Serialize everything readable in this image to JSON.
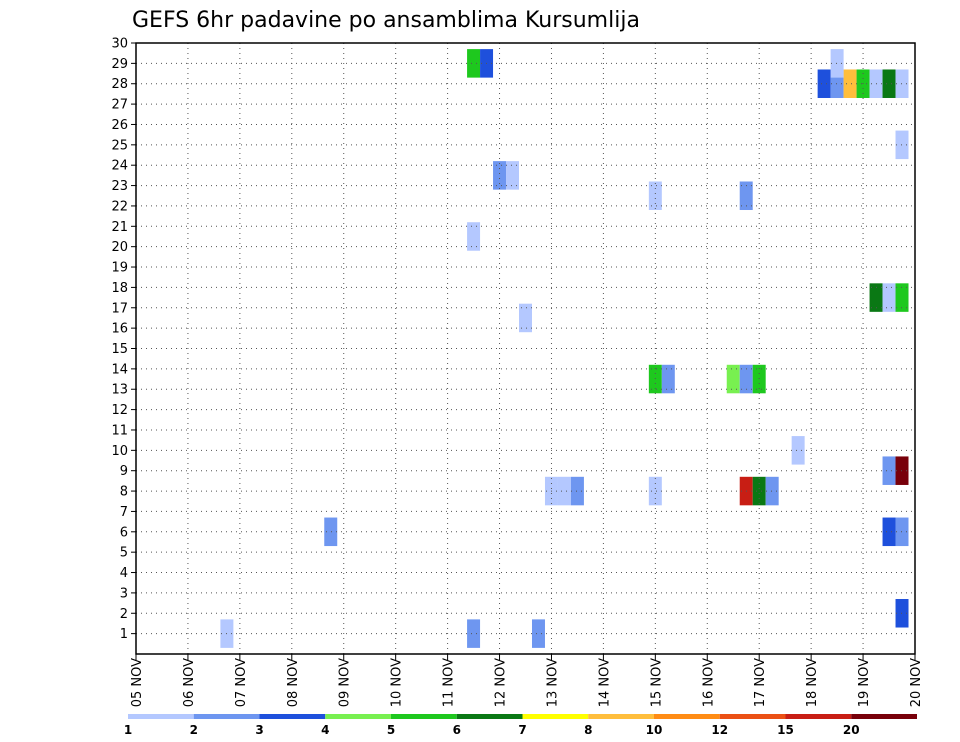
{
  "chart_data": {
    "type": "heatmap",
    "title": "GEFS 6hr padavine po ansamblima Kursumlija",
    "x_ticks": [
      "05 NOV",
      "06 NOV",
      "07 NOV",
      "08 NOV",
      "09 NOV",
      "10 NOV",
      "11 NOV",
      "12 NOV",
      "13 NOV",
      "14 NOV",
      "15 NOV",
      "16 NOV",
      "17 NOV",
      "18 NOV",
      "19 NOV",
      "20 NOV"
    ],
    "y_ticks": [
      "1",
      "2",
      "3",
      "4",
      "5",
      "6",
      "7",
      "8",
      "9",
      "10",
      "11",
      "12",
      "13",
      "14",
      "15",
      "16",
      "17",
      "18",
      "19",
      "20",
      "21",
      "22",
      "23",
      "24",
      "25",
      "26",
      "27",
      "28",
      "29",
      "30"
    ],
    "x_range": [
      "05 NOV 00Z",
      "20 NOV 00Z"
    ],
    "y_range": [
      0,
      30
    ],
    "grid": true,
    "colorbar": {
      "labels": [
        "1",
        "2",
        "3",
        "4",
        "5",
        "6",
        "7",
        "8",
        "10",
        "12",
        "15",
        "20"
      ],
      "colors": [
        "#b4c8ff",
        "#6e96f0",
        "#1e50dc",
        "#78f050",
        "#1ec81e",
        "#0a7814",
        "#ffff00",
        "#ffbe3c",
        "#ff8c14",
        "#eb5014",
        "#c81e14",
        "#78000a"
      ]
    },
    "cells": [
      {
        "member": 29,
        "day": 11.5,
        "precip": 5
      },
      {
        "member": 29,
        "day": 11.75,
        "precip": 3
      },
      {
        "member": 28,
        "day": 18.25,
        "precip": 3
      },
      {
        "member": 28,
        "day": 18.5,
        "precip": 2
      },
      {
        "member": 28,
        "day": 18.75,
        "precip": 8
      },
      {
        "member": 28,
        "day": 19.0,
        "precip": 5
      },
      {
        "member": 28,
        "day": 19.25,
        "precip": 1
      },
      {
        "member": 28,
        "day": 19.5,
        "precip": 6
      },
      {
        "member": 28,
        "day": 19.75,
        "precip": 1
      },
      {
        "member": 29,
        "day": 18.5,
        "precip": 1
      },
      {
        "member": 25,
        "day": 19.75,
        "precip": 1
      },
      {
        "member": 23.5,
        "day": 12.0,
        "precip": 2
      },
      {
        "member": 23.5,
        "day": 12.25,
        "precip": 1
      },
      {
        "member": 22.5,
        "day": 15.0,
        "precip": 1
      },
      {
        "member": 22.5,
        "day": 16.75,
        "precip": 2
      },
      {
        "member": 20.5,
        "day": 11.5,
        "precip": 1
      },
      {
        "member": 17.5,
        "day": 19.25,
        "precip": 6
      },
      {
        "member": 17.5,
        "day": 19.5,
        "precip": 1
      },
      {
        "member": 17.5,
        "day": 19.75,
        "precip": 5
      },
      {
        "member": 16.5,
        "day": 12.5,
        "precip": 1
      },
      {
        "member": 13.5,
        "day": 15.0,
        "precip": 5
      },
      {
        "member": 13.5,
        "day": 15.25,
        "precip": 2
      },
      {
        "member": 13.5,
        "day": 16.5,
        "precip": 4
      },
      {
        "member": 13.5,
        "day": 16.75,
        "precip": 2
      },
      {
        "member": 13.5,
        "day": 17.0,
        "precip": 5
      },
      {
        "member": 10,
        "day": 17.75,
        "precip": 1
      },
      {
        "member": 9,
        "day": 19.5,
        "precip": 2
      },
      {
        "member": 9,
        "day": 19.75,
        "precip": 20
      },
      {
        "member": 8,
        "day": 13.0,
        "precip": 1
      },
      {
        "member": 8,
        "day": 13.25,
        "precip": 1
      },
      {
        "member": 8,
        "day": 13.5,
        "precip": 2
      },
      {
        "member": 8,
        "day": 15.0,
        "precip": 1
      },
      {
        "member": 8,
        "day": 16.75,
        "precip": 15
      },
      {
        "member": 8,
        "day": 17.0,
        "precip": 6
      },
      {
        "member": 8,
        "day": 17.25,
        "precip": 2
      },
      {
        "member": 6,
        "day": 8.75,
        "precip": 2
      },
      {
        "member": 6,
        "day": 19.5,
        "precip": 3
      },
      {
        "member": 6,
        "day": 19.75,
        "precip": 2
      },
      {
        "member": 2,
        "day": 19.75,
        "precip": 3
      },
      {
        "member": 1,
        "day": 6.75,
        "precip": 1
      },
      {
        "member": 1,
        "day": 11.5,
        "precip": 2
      },
      {
        "member": 1,
        "day": 12.75,
        "precip": 2
      }
    ]
  }
}
